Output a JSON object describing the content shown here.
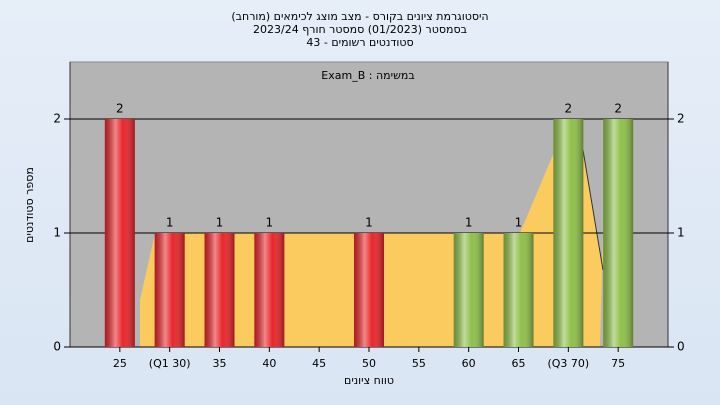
{
  "chart_data": {
    "type": "bar",
    "title": "היסטוגרמת ציונים בקורס - מצב מוצג לכימאים (מורחב)",
    "subtitle": "בסמסטר (01/2023) סמסטר חורף 2023/24",
    "subtitle2": "סטודנטים רשומים - 43",
    "annotation": "במשימה : Exam_B",
    "x_label": "טווח ציונים",
    "y_label": "מספר סטודנטים",
    "categories": [
      "25",
      "(Q1 30)",
      "35",
      "40",
      "45",
      "50",
      "55",
      "60",
      "65",
      "(Q3 70)",
      "75"
    ],
    "values": [
      2,
      1,
      1,
      1,
      0,
      1,
      0,
      1,
      1,
      2,
      2
    ],
    "colors": [
      "#e8262b",
      "#e8262b",
      "#e8262b",
      "#e8262b",
      "#e8262b",
      "#e8262b",
      "#e8262b",
      "#8fbf4a",
      "#8fbf4a",
      "#8fbf4a",
      "#8fbf4a"
    ],
    "ylim": [
      0,
      2.5
    ],
    "yticks": [
      0,
      1,
      2
    ],
    "y2lim": [
      0,
      2.5
    ],
    "y2ticks": [
      0,
      1,
      2
    ]
  }
}
